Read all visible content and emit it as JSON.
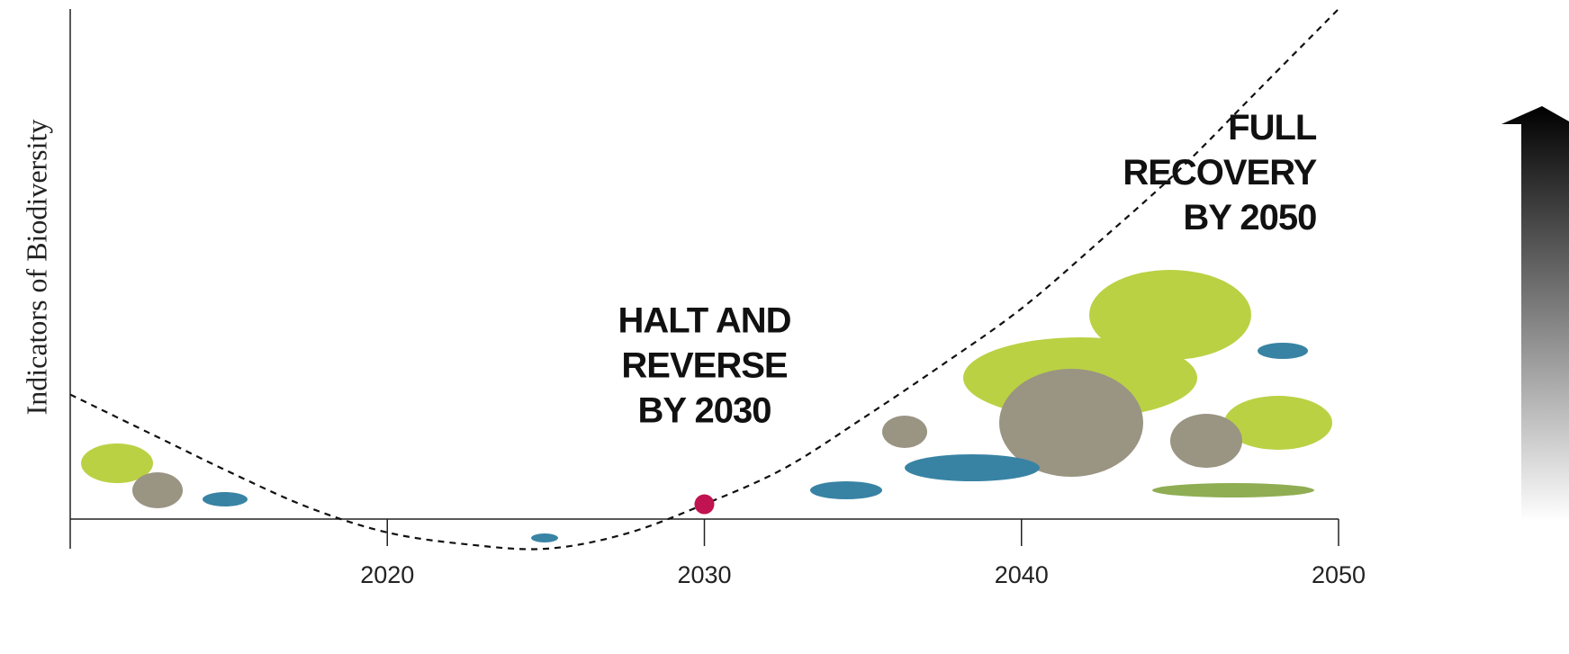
{
  "chart_data": {
    "type": "line",
    "y_label": "Indicators of Biodiversity",
    "x": [
      2010,
      2012.5,
      2015,
      2017.5,
      2020,
      2022.5,
      2025,
      2027.5,
      2030,
      2032.5,
      2035,
      2037.5,
      2040,
      2042.5,
      2045,
      2047.5,
      2050
    ],
    "series": [
      {
        "color": "#111111",
        "dashed": true,
        "values": [
          4.2,
          2.9,
          1.6,
          0.4,
          -0.45,
          -0.85,
          -1.0,
          -0.5,
          0.5,
          1.7,
          3.4,
          5.2,
          7.1,
          9.4,
          11.8,
          14.5,
          17.2
        ]
      }
    ],
    "highlight": {
      "x": 2030,
      "y": 0.5,
      "color": "#c0134f"
    },
    "xlim": [
      2010,
      2050
    ],
    "xticks": [
      2020,
      2030,
      2040,
      2050
    ],
    "ylim": [
      -1,
      17.2
    ],
    "annotations": [
      {
        "lines": [
          "HALT AND",
          "REVERSE",
          "BY 2030"
        ],
        "x": 2030,
        "y": 6.3
      },
      {
        "lines": [
          "FULL",
          "RECOVERY",
          "BY 2050"
        ],
        "x": 2049.3,
        "y": 12.8
      }
    ]
  }
}
